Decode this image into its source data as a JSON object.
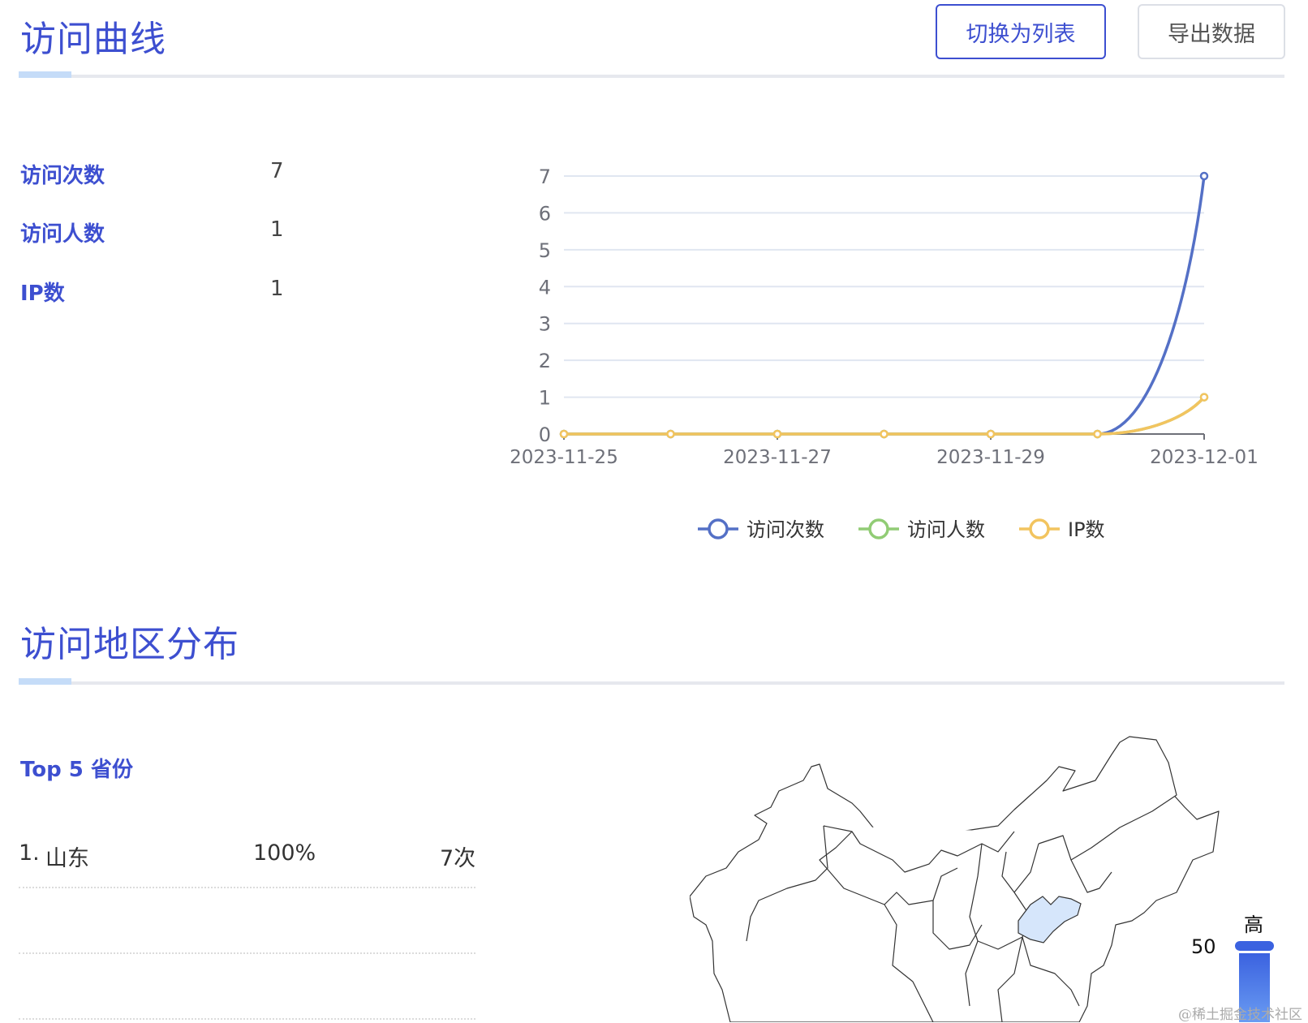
{
  "section1": {
    "title": "访问曲线",
    "buttons": {
      "toggle_list": "切换为列表",
      "export": "导出数据"
    },
    "stats": [
      {
        "label": "访问次数",
        "value": "7"
      },
      {
        "label": "访问人数",
        "value": "1"
      },
      {
        "label": "IP数",
        "value": "1"
      }
    ]
  },
  "chart_data": {
    "type": "line",
    "smooth": true,
    "x": [
      "2023-11-25",
      "2023-11-26",
      "2023-11-27",
      "2023-11-28",
      "2023-11-29",
      "2023-11-30",
      "2023-12-01"
    ],
    "x_tick_labels": [
      "2023-11-25",
      "2023-11-27",
      "2023-11-29",
      "2023-12-01"
    ],
    "y_ticks": [
      "0",
      "1",
      "2",
      "3",
      "4",
      "5",
      "6",
      "7"
    ],
    "ylim": [
      0,
      7
    ],
    "grid": true,
    "legend_position": "bottom",
    "series": [
      {
        "name": "访问次数",
        "color": "#5470c6",
        "values": [
          0,
          0,
          0,
          0,
          0,
          0,
          7
        ]
      },
      {
        "name": "访问人数",
        "color": "#91cc75",
        "values": [
          0,
          0,
          0,
          0,
          0,
          0,
          1
        ]
      },
      {
        "name": "IP数",
        "color": "#f2c45f",
        "values": [
          0,
          0,
          0,
          0,
          0,
          0,
          1
        ]
      }
    ]
  },
  "section2": {
    "title": "访问地区分布",
    "top5_title": "Top 5 省份",
    "rows": [
      {
        "rank": "1.",
        "province": "山东",
        "percent": "100%",
        "count": "7次"
      }
    ],
    "map": {
      "highlighted_province": "山东",
      "highlight_color": "#d6e6fb",
      "visual_map": {
        "high_label": "高",
        "max_value": "50",
        "color": "#3b62e0"
      }
    }
  },
  "watermark": "@稀土掘金技术社区",
  "colors": {
    "accent": "#3d4fd0"
  }
}
